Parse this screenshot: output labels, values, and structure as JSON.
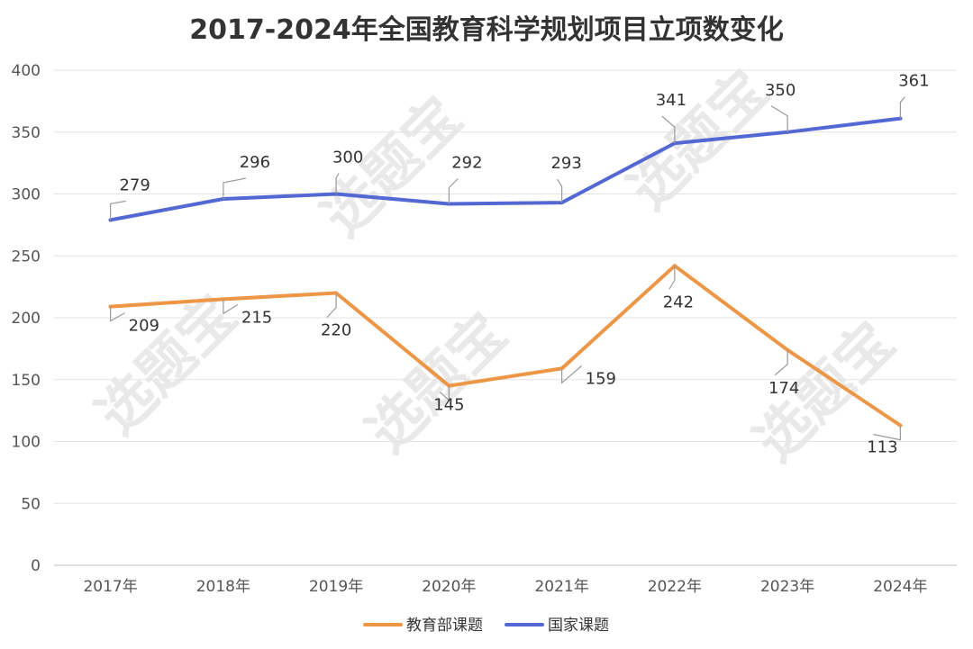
{
  "title": "2017-2024年全国教育科学规划项目立项数变化",
  "watermark": "选题宝",
  "chart_data": {
    "type": "line",
    "title": "2017-2024年全国教育科学规划项目立项数变化",
    "categories": [
      "2017年",
      "2018年",
      "2019年",
      "2020年",
      "2021年",
      "2022年",
      "2023年",
      "2024年"
    ],
    "series": [
      {
        "name": "教育部课题",
        "color": "#ED9645",
        "values": [
          209,
          215,
          220,
          145,
          159,
          242,
          174,
          113
        ]
      },
      {
        "name": "国家课题",
        "color": "#5468D4",
        "values": [
          279,
          296,
          300,
          292,
          293,
          341,
          350,
          361
        ]
      }
    ],
    "ylim": [
      0,
      400
    ],
    "yticks": [
      0,
      50,
      100,
      150,
      200,
      250,
      300,
      350,
      400
    ],
    "xlabel": "",
    "ylabel": "",
    "grid": true,
    "legend_position": "bottom"
  }
}
